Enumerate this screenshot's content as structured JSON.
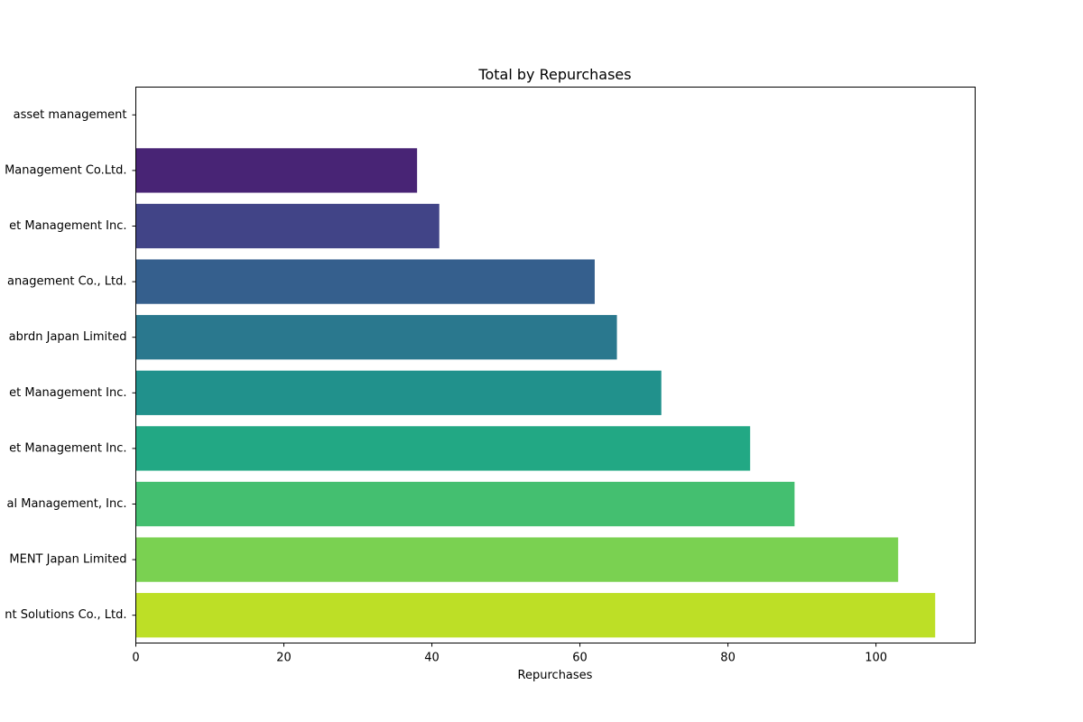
{
  "chart_data": {
    "type": "bar",
    "orientation": "horizontal",
    "title": "Total by Repurchases",
    "xlabel": "Repurchases",
    "ylabel": "",
    "xlim": [
      0,
      113.4
    ],
    "xticks": [
      0,
      20,
      40,
      60,
      80,
      100
    ],
    "grid": false,
    "legend": "none",
    "categories": [
      "asset management",
      "Management Co.Ltd.",
      "et Management Inc.",
      "anagement Co., Ltd.",
      "abrdn Japan Limited",
      "et Management Inc.",
      "et Management Inc.",
      "al Management, Inc.",
      "MENT Japan Limited",
      "nt Solutions Co., Ltd."
    ],
    "values": [
      0,
      38,
      41,
      62,
      65,
      71,
      83,
      89,
      103,
      108
    ],
    "colors": [
      "#482475",
      "#482475",
      "#414487",
      "#355f8d",
      "#2a788e",
      "#21918c",
      "#22a884",
      "#44bf70",
      "#7ad151",
      "#bddf26"
    ]
  }
}
